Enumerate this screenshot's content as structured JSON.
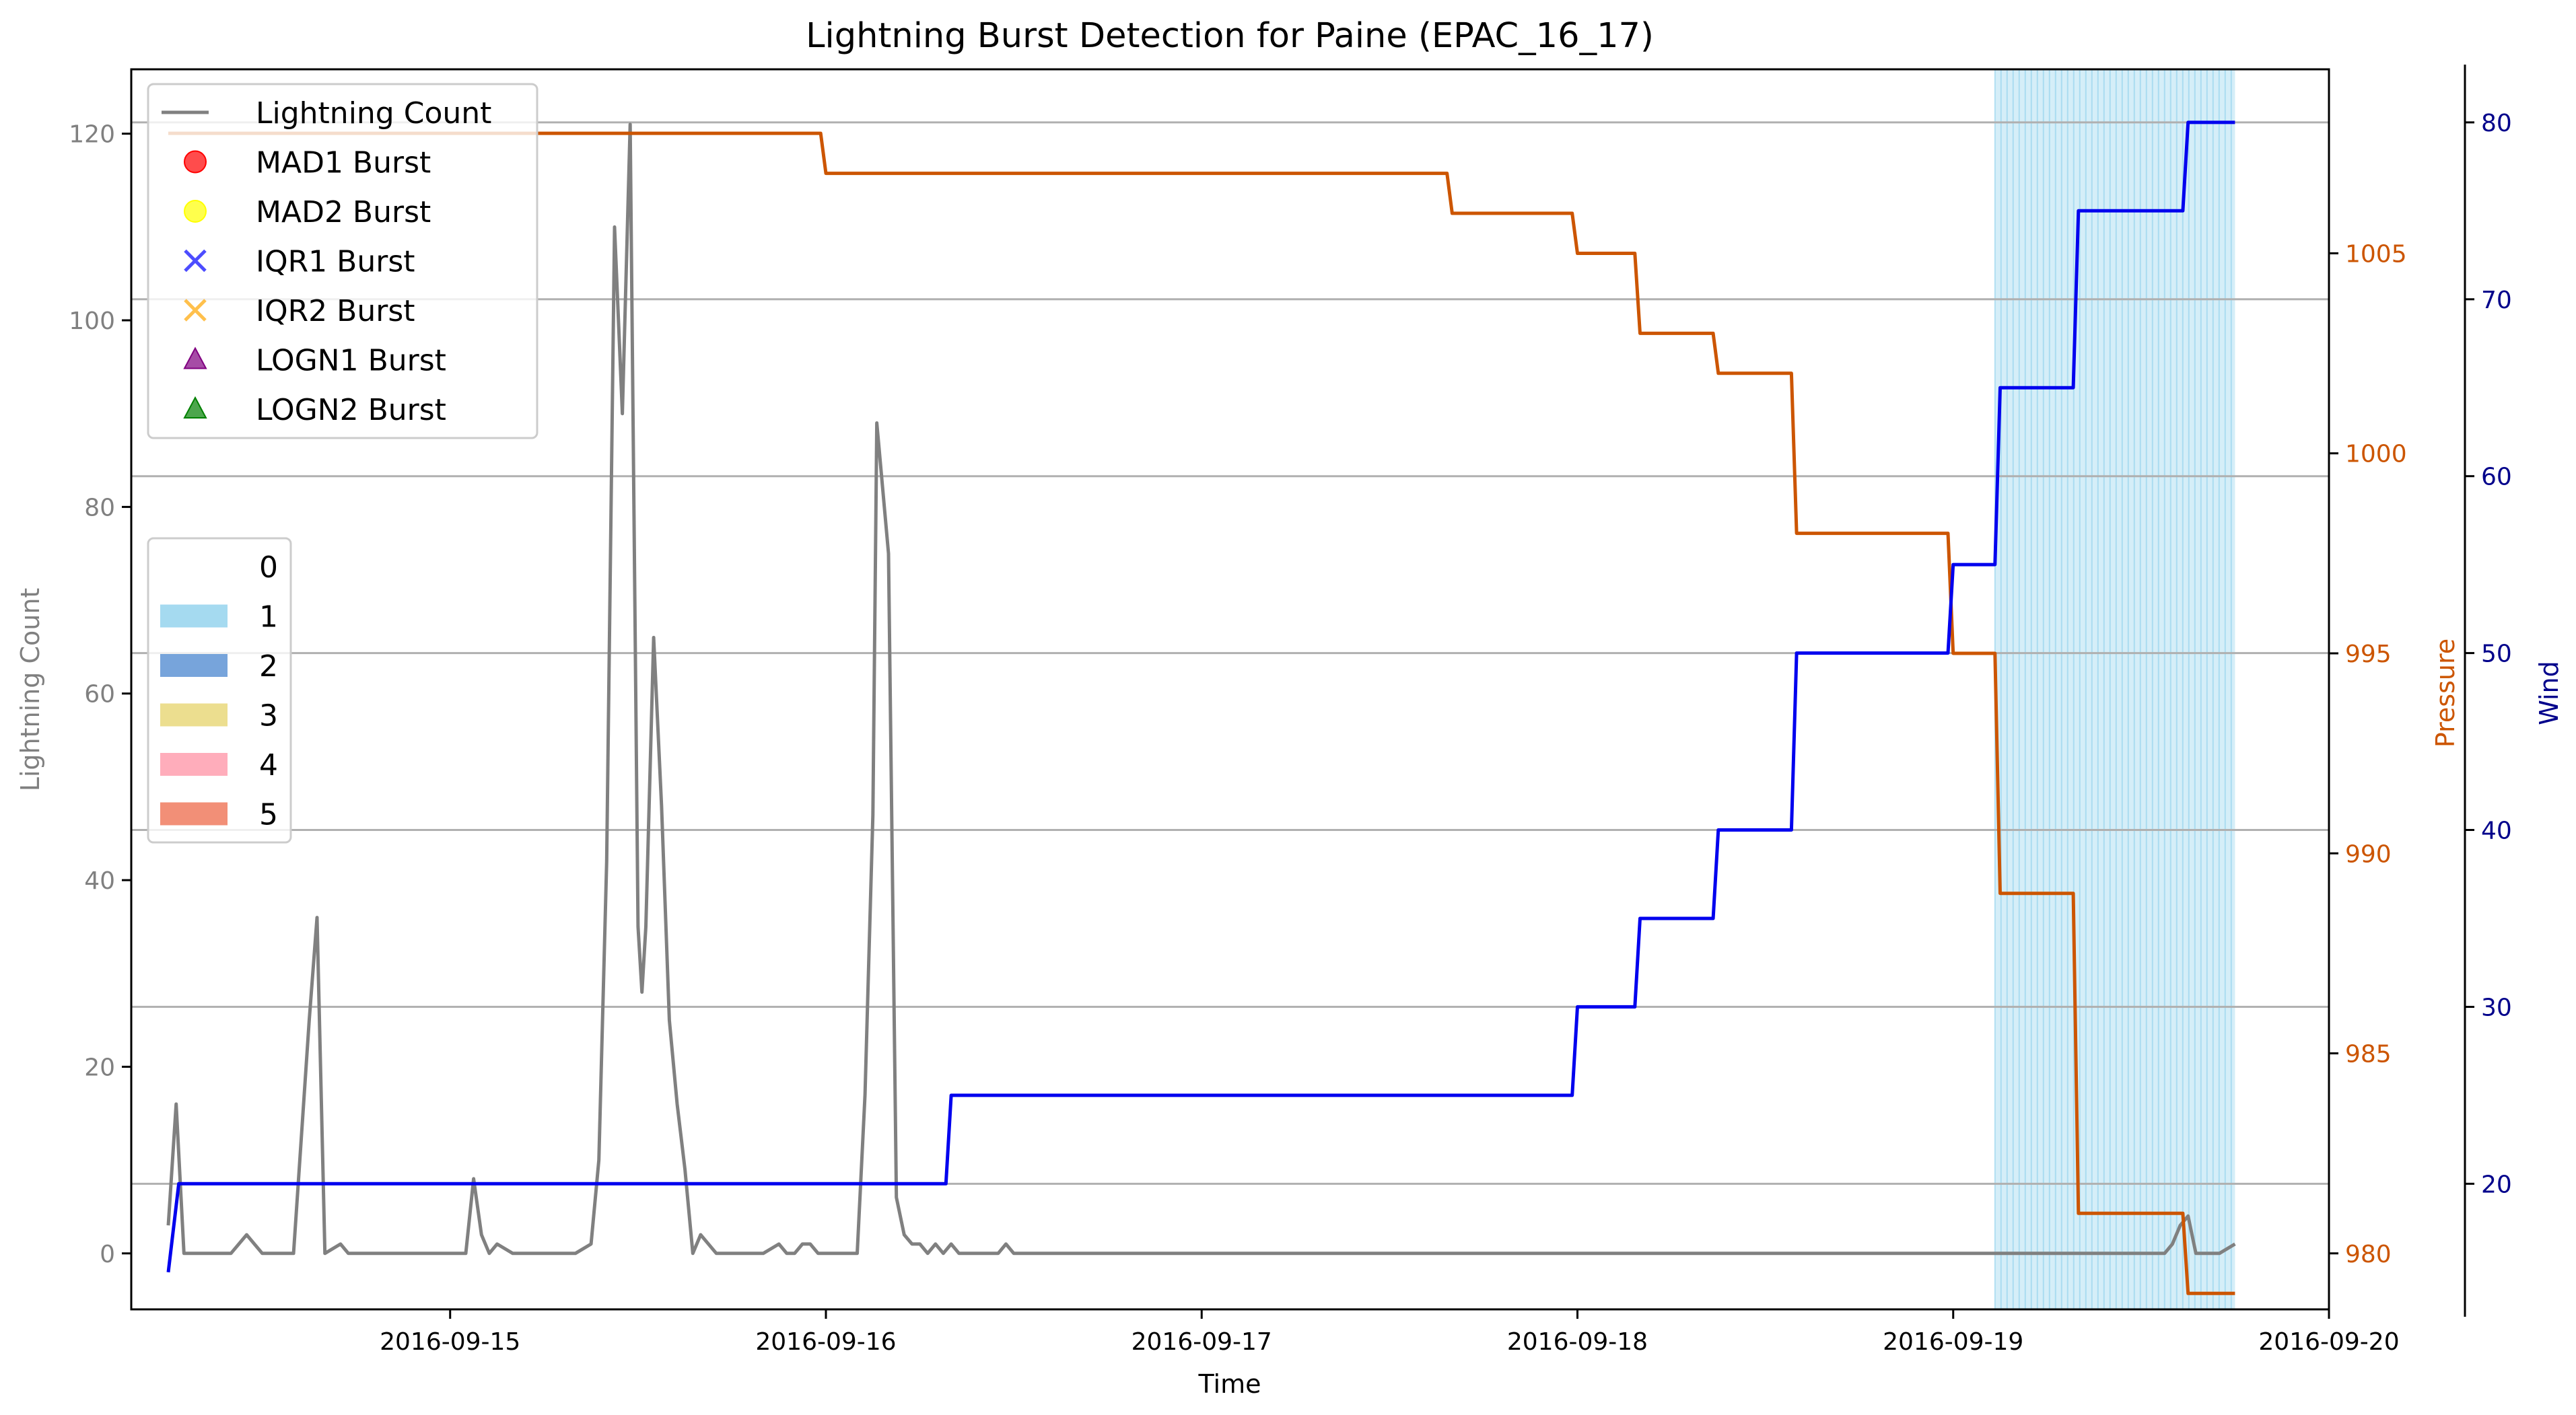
{
  "chart_data": {
    "type": "line",
    "title": "Lightning Burst Detection for Paine (EPAC_16_17)",
    "xlabel": "Time",
    "ylabel": "Lightning Count",
    "ylabel_right": "Pressure",
    "ylabel_right2": "Wind",
    "x_ticks": [
      "2016-09-15",
      "2016-09-16",
      "2016-09-17",
      "2016-09-18",
      "2016-09-19",
      "2016-09-20"
    ],
    "y_ticks": [
      0,
      20,
      40,
      60,
      80,
      100,
      120
    ],
    "y_ticks_right": [
      980,
      985,
      990,
      995,
      1000,
      1005
    ],
    "y_ticks_right2": [
      20,
      30,
      40,
      50,
      60,
      70,
      80
    ],
    "xlim": [
      "2016-09-14 03:38",
      "2016-09-20 00:00"
    ],
    "ylim": [
      -6.0,
      126.9
    ],
    "ylim_right": [
      978.6,
      1009.6
    ],
    "ylim_right2": [
      12.9,
      83.0
    ],
    "grid": "horizontal",
    "colors": {
      "lightning": "#808080",
      "pressure": "#cc5500",
      "wind": "#0000ee",
      "shade": "#87ceeb",
      "left_axis": "#808080",
      "right_axis": "#cc5500",
      "right2_axis": "#00008b"
    },
    "series": [
      {
        "name": "Lightning Count",
        "axis": "left",
        "points": [
          [
            "2016-09-14 06:00",
            3
          ],
          [
            "2016-09-14 06:30",
            16
          ],
          [
            "2016-09-14 07:00",
            0
          ],
          [
            "2016-09-14 09:00",
            0
          ],
          [
            "2016-09-14 10:00",
            0
          ],
          [
            "2016-09-14 11:00",
            2
          ],
          [
            "2016-09-14 12:00",
            0
          ],
          [
            "2016-09-14 13:00",
            0
          ],
          [
            "2016-09-14 14:00",
            0
          ],
          [
            "2016-09-14 15:00",
            25
          ],
          [
            "2016-09-14 15:30",
            36
          ],
          [
            "2016-09-14 16:00",
            0
          ],
          [
            "2016-09-14 17:00",
            1
          ],
          [
            "2016-09-14 17:30",
            0
          ],
          [
            "2016-09-14 19:00",
            0
          ],
          [
            "2016-09-15 00:00",
            0
          ],
          [
            "2016-09-15 01:00",
            0
          ],
          [
            "2016-09-15 01:30",
            8
          ],
          [
            "2016-09-15 02:00",
            2
          ],
          [
            "2016-09-15 02:30",
            0
          ],
          [
            "2016-09-15 03:00",
            1
          ],
          [
            "2016-09-15 04:00",
            0
          ],
          [
            "2016-09-15 07:00",
            0
          ],
          [
            "2016-09-15 08:00",
            0
          ],
          [
            "2016-09-15 09:00",
            1
          ],
          [
            "2016-09-15 09:30",
            10
          ],
          [
            "2016-09-15 10:00",
            42
          ],
          [
            "2016-09-15 10:30",
            110
          ],
          [
            "2016-09-15 11:00",
            90
          ],
          [
            "2016-09-15 11:30",
            121
          ],
          [
            "2016-09-15 12:00",
            35
          ],
          [
            "2016-09-15 12:15",
            28
          ],
          [
            "2016-09-15 12:30",
            35
          ],
          [
            "2016-09-15 13:00",
            66
          ],
          [
            "2016-09-15 13:30",
            48
          ],
          [
            "2016-09-15 14:00",
            25
          ],
          [
            "2016-09-15 14:30",
            16
          ],
          [
            "2016-09-15 15:00",
            9
          ],
          [
            "2016-09-15 15:30",
            0
          ],
          [
            "2016-09-15 16:00",
            2
          ],
          [
            "2016-09-15 17:00",
            0
          ],
          [
            "2016-09-15 19:00",
            0
          ],
          [
            "2016-09-15 20:00",
            0
          ],
          [
            "2016-09-15 21:00",
            1
          ],
          [
            "2016-09-15 21:30",
            0
          ],
          [
            "2016-09-15 22:00",
            0
          ],
          [
            "2016-09-15 22:30",
            1
          ],
          [
            "2016-09-15 23:00",
            1
          ],
          [
            "2016-09-15 23:30",
            0
          ],
          [
            "2016-09-16 00:00",
            0
          ],
          [
            "2016-09-16 01:00",
            0
          ],
          [
            "2016-09-16 02:00",
            0
          ],
          [
            "2016-09-16 02:30",
            17
          ],
          [
            "2016-09-16 03:00",
            47
          ],
          [
            "2016-09-16 03:15",
            89
          ],
          [
            "2016-09-16 04:00",
            75
          ],
          [
            "2016-09-16 04:30",
            6
          ],
          [
            "2016-09-16 05:00",
            2
          ],
          [
            "2016-09-16 05:30",
            1
          ],
          [
            "2016-09-16 06:00",
            1
          ],
          [
            "2016-09-16 06:30",
            0
          ],
          [
            "2016-09-16 07:00",
            1
          ],
          [
            "2016-09-16 07:30",
            0
          ],
          [
            "2016-09-16 08:00",
            1
          ],
          [
            "2016-09-16 08:30",
            0
          ],
          [
            "2016-09-16 10:00",
            0
          ],
          [
            "2016-09-16 11:00",
            0
          ],
          [
            "2016-09-16 11:30",
            1
          ],
          [
            "2016-09-16 12:00",
            0
          ],
          [
            "2016-09-16 14:00",
            0
          ],
          [
            "2016-09-17 00:00",
            0
          ],
          [
            "2016-09-18 00:00",
            0
          ],
          [
            "2016-09-19 00:00",
            0
          ],
          [
            "2016-09-19 12:00",
            0
          ],
          [
            "2016-09-19 13:30",
            0
          ],
          [
            "2016-09-19 14:00",
            1
          ],
          [
            "2016-09-19 14:30",
            3
          ],
          [
            "2016-09-19 15:00",
            4
          ],
          [
            "2016-09-19 15:30",
            0
          ],
          [
            "2016-09-19 17:00",
            0
          ],
          [
            "2016-09-19 18:00",
            1
          ]
        ]
      },
      {
        "name": "Pressure",
        "axis": "right",
        "points": [
          [
            "2016-09-14 06:00",
            1008
          ],
          [
            "2016-09-15 23:40",
            1008
          ],
          [
            "2016-09-16 00:00",
            1007
          ],
          [
            "2016-09-17 15:40",
            1007
          ],
          [
            "2016-09-17 16:00",
            1006
          ],
          [
            "2016-09-17 23:40",
            1006
          ],
          [
            "2016-09-18 00:00",
            1005
          ],
          [
            "2016-09-18 03:40",
            1005
          ],
          [
            "2016-09-18 04:00",
            1003
          ],
          [
            "2016-09-18 08:40",
            1003
          ],
          [
            "2016-09-18 09:00",
            1002
          ],
          [
            "2016-09-18 13:40",
            1002
          ],
          [
            "2016-09-18 14:00",
            998
          ],
          [
            "2016-09-18 23:40",
            998
          ],
          [
            "2016-09-19 00:00",
            995
          ],
          [
            "2016-09-19 02:40",
            995
          ],
          [
            "2016-09-19 03:00",
            989
          ],
          [
            "2016-09-19 07:40",
            989
          ],
          [
            "2016-09-19 08:00",
            981
          ],
          [
            "2016-09-19 14:40",
            981
          ],
          [
            "2016-09-19 15:00",
            979
          ],
          [
            "2016-09-19 18:00",
            979
          ]
        ]
      },
      {
        "name": "Wind",
        "axis": "right2",
        "points": [
          [
            "2016-09-14 06:00",
            15
          ],
          [
            "2016-09-14 06:40",
            20
          ],
          [
            "2016-09-16 07:40",
            20
          ],
          [
            "2016-09-16 08:00",
            25
          ],
          [
            "2016-09-17 23:40",
            25
          ],
          [
            "2016-09-18 00:00",
            30
          ],
          [
            "2016-09-18 03:40",
            30
          ],
          [
            "2016-09-18 04:00",
            35
          ],
          [
            "2016-09-18 08:40",
            35
          ],
          [
            "2016-09-18 09:00",
            40
          ],
          [
            "2016-09-18 13:40",
            40
          ],
          [
            "2016-09-18 14:00",
            50
          ],
          [
            "2016-09-18 23:40",
            50
          ],
          [
            "2016-09-19 00:00",
            55
          ],
          [
            "2016-09-19 02:40",
            55
          ],
          [
            "2016-09-19 03:00",
            65
          ],
          [
            "2016-09-19 07:40",
            65
          ],
          [
            "2016-09-19 08:00",
            75
          ],
          [
            "2016-09-19 14:40",
            75
          ],
          [
            "2016-09-19 15:00",
            80
          ],
          [
            "2016-09-19 18:00",
            80
          ]
        ]
      }
    ],
    "shaded_region": {
      "category": "1",
      "start": "2016-09-19 02:40",
      "end": "2016-09-19 18:00"
    },
    "legend_markers": {
      "placement": "upper left",
      "items": [
        {
          "label": "Lightning Count",
          "kind": "line",
          "color": "#808080"
        },
        {
          "label": "MAD1 Burst",
          "kind": "circle",
          "color": "#ff0000"
        },
        {
          "label": "MAD2 Burst",
          "kind": "circle",
          "color": "#ffff00"
        },
        {
          "label": "IQR1 Burst",
          "kind": "x",
          "color": "#0000ff"
        },
        {
          "label": "IQR2 Burst",
          "kind": "x",
          "color": "#ffa500"
        },
        {
          "label": "LOGN1 Burst",
          "kind": "triangle",
          "color": "#800080"
        },
        {
          "label": "LOGN2 Burst",
          "kind": "triangle",
          "color": "#008000"
        }
      ]
    },
    "legend_categories": {
      "placement": "center left",
      "items": [
        {
          "label": "0",
          "color": "#ffffff"
        },
        {
          "label": "1",
          "color": "#87ceeb"
        },
        {
          "label": "2",
          "color": "#4a86cf"
        },
        {
          "label": "3",
          "color": "#e6d36a"
        },
        {
          "label": "4",
          "color": "#ff91a4"
        },
        {
          "label": "5",
          "color": "#ee6a4a"
        }
      ]
    }
  }
}
